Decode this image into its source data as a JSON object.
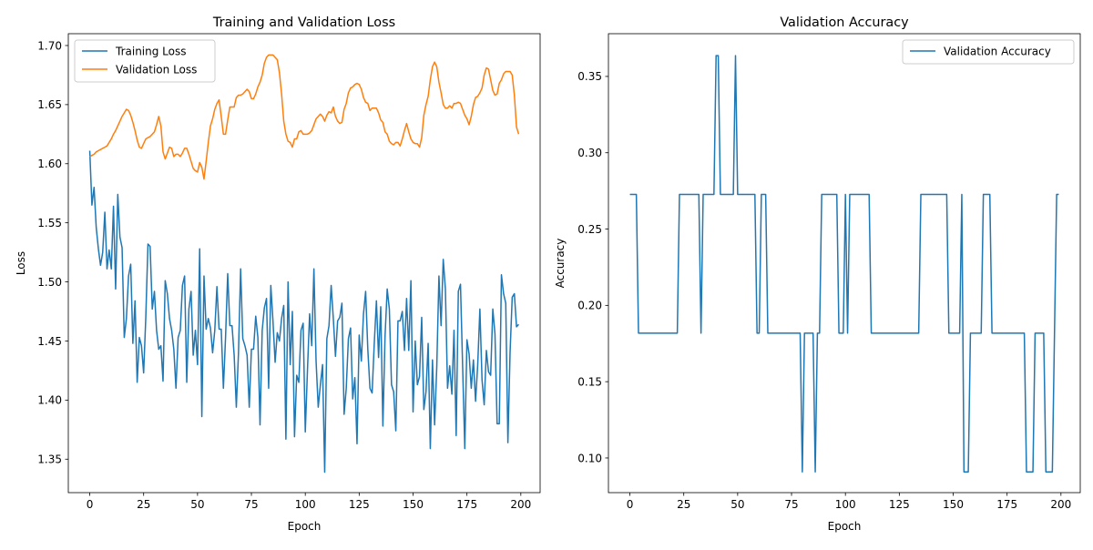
{
  "chart_data": [
    {
      "type": "line",
      "title": "Training and Validation Loss",
      "xlabel": "Epoch",
      "ylabel": "Loss",
      "xlim": [
        -9.95,
        208.95
      ],
      "ylim": [
        1.3217,
        1.71
      ],
      "xticks": [
        0,
        25,
        50,
        75,
        100,
        125,
        150,
        175,
        200
      ],
      "yticks": [
        1.35,
        1.4,
        1.45,
        1.5,
        1.55,
        1.6,
        1.65,
        1.7
      ],
      "ytick_labels": [
        "1.35",
        "1.40",
        "1.45",
        "1.50",
        "1.55",
        "1.60",
        "1.65",
        "1.70"
      ],
      "grid": false,
      "legend": "top-left",
      "series": [
        {
          "name": "Training Loss",
          "color": "#1f77b4",
          "values": [
            1.611,
            1.565,
            1.58,
            1.546,
            1.528,
            1.514,
            1.525,
            1.559,
            1.511,
            1.527,
            1.511,
            1.564,
            1.494,
            1.574,
            1.538,
            1.529,
            1.453,
            1.469,
            1.505,
            1.515,
            1.448,
            1.484,
            1.415,
            1.453,
            1.446,
            1.423,
            1.47,
            1.532,
            1.53,
            1.477,
            1.492,
            1.459,
            1.443,
            1.446,
            1.416,
            1.501,
            1.49,
            1.469,
            1.459,
            1.443,
            1.41,
            1.453,
            1.459,
            1.497,
            1.505,
            1.415,
            1.477,
            1.492,
            1.438,
            1.459,
            1.43,
            1.528,
            1.386,
            1.505,
            1.46,
            1.469,
            1.461,
            1.44,
            1.459,
            1.496,
            1.46,
            1.46,
            1.41,
            1.453,
            1.507,
            1.463,
            1.463,
            1.438,
            1.394,
            1.44,
            1.511,
            1.452,
            1.446,
            1.438,
            1.394,
            1.443,
            1.443,
            1.471,
            1.453,
            1.379,
            1.459,
            1.478,
            1.486,
            1.41,
            1.497,
            1.467,
            1.432,
            1.457,
            1.45,
            1.469,
            1.48,
            1.367,
            1.5,
            1.43,
            1.475,
            1.369,
            1.421,
            1.415,
            1.459,
            1.465,
            1.373,
            1.425,
            1.473,
            1.446,
            1.511,
            1.433,
            1.394,
            1.413,
            1.43,
            1.339,
            1.452,
            1.463,
            1.497,
            1.469,
            1.437,
            1.467,
            1.47,
            1.482,
            1.388,
            1.41,
            1.452,
            1.461,
            1.401,
            1.419,
            1.363,
            1.455,
            1.433,
            1.473,
            1.492,
            1.443,
            1.41,
            1.406,
            1.448,
            1.484,
            1.436,
            1.479,
            1.378,
            1.454,
            1.494,
            1.477,
            1.413,
            1.407,
            1.374,
            1.467,
            1.467,
            1.475,
            1.442,
            1.486,
            1.442,
            1.501,
            1.39,
            1.45,
            1.413,
            1.42,
            1.47,
            1.392,
            1.407,
            1.448,
            1.359,
            1.434,
            1.379,
            1.428,
            1.505,
            1.463,
            1.519,
            1.494,
            1.41,
            1.429,
            1.405,
            1.459,
            1.37,
            1.492,
            1.498,
            1.428,
            1.359,
            1.451,
            1.439,
            1.41,
            1.434,
            1.399,
            1.43,
            1.477,
            1.417,
            1.396,
            1.442,
            1.424,
            1.421,
            1.477,
            1.456,
            1.38,
            1.38,
            1.506,
            1.49,
            1.482,
            1.364,
            1.44,
            1.487,
            1.49,
            1.462,
            1.464
          ]
        },
        {
          "name": "Validation Loss",
          "color": "#ff7f0e",
          "values": [
            1.606,
            1.607,
            1.608,
            1.61,
            1.611,
            1.612,
            1.613,
            1.614,
            1.615,
            1.618,
            1.621,
            1.625,
            1.628,
            1.632,
            1.636,
            1.64,
            1.643,
            1.646,
            1.645,
            1.641,
            1.635,
            1.628,
            1.62,
            1.614,
            1.613,
            1.617,
            1.621,
            1.622,
            1.623,
            1.625,
            1.627,
            1.633,
            1.64,
            1.632,
            1.61,
            1.604,
            1.609,
            1.614,
            1.613,
            1.606,
            1.608,
            1.608,
            1.606,
            1.609,
            1.613,
            1.613,
            1.608,
            1.602,
            1.596,
            1.594,
            1.593,
            1.601,
            1.597,
            1.587,
            1.602,
            1.618,
            1.632,
            1.638,
            1.646,
            1.651,
            1.654,
            1.64,
            1.625,
            1.625,
            1.637,
            1.648,
            1.648,
            1.648,
            1.656,
            1.658,
            1.658,
            1.659,
            1.661,
            1.663,
            1.661,
            1.655,
            1.655,
            1.659,
            1.665,
            1.669,
            1.675,
            1.685,
            1.69,
            1.692,
            1.692,
            1.692,
            1.69,
            1.688,
            1.677,
            1.659,
            1.636,
            1.625,
            1.619,
            1.618,
            1.614,
            1.621,
            1.621,
            1.627,
            1.628,
            1.625,
            1.625,
            1.625,
            1.626,
            1.628,
            1.633,
            1.638,
            1.64,
            1.642,
            1.64,
            1.636,
            1.641,
            1.644,
            1.643,
            1.648,
            1.64,
            1.636,
            1.634,
            1.635,
            1.646,
            1.651,
            1.66,
            1.664,
            1.665,
            1.667,
            1.668,
            1.667,
            1.663,
            1.656,
            1.652,
            1.651,
            1.645,
            1.647,
            1.647,
            1.647,
            1.643,
            1.637,
            1.635,
            1.627,
            1.625,
            1.619,
            1.617,
            1.616,
            1.618,
            1.618,
            1.615,
            1.621,
            1.628,
            1.634,
            1.627,
            1.621,
            1.618,
            1.617,
            1.617,
            1.614,
            1.622,
            1.641,
            1.65,
            1.657,
            1.671,
            1.682,
            1.686,
            1.682,
            1.669,
            1.66,
            1.65,
            1.647,
            1.647,
            1.649,
            1.647,
            1.651,
            1.651,
            1.652,
            1.651,
            1.646,
            1.641,
            1.638,
            1.633,
            1.64,
            1.65,
            1.656,
            1.657,
            1.66,
            1.664,
            1.675,
            1.681,
            1.68,
            1.671,
            1.662,
            1.658,
            1.659,
            1.668,
            1.671,
            1.676,
            1.678,
            1.678,
            1.678,
            1.675,
            1.658,
            1.631,
            1.625
          ]
        }
      ]
    },
    {
      "type": "line",
      "title": "Validation Accuracy",
      "xlabel": "Epoch",
      "ylabel": "Accuracy",
      "xlim": [
        -9.95,
        208.95
      ],
      "ylim": [
        0.0773,
        0.378
      ],
      "xticks": [
        0,
        25,
        50,
        75,
        100,
        125,
        150,
        175,
        200
      ],
      "yticks": [
        0.1,
        0.15,
        0.2,
        0.25,
        0.3,
        0.35
      ],
      "ytick_labels": [
        "0.10",
        "0.15",
        "0.20",
        "0.25",
        "0.30",
        "0.35"
      ],
      "grid": false,
      "legend": "top-right",
      "series": [
        {
          "name": "Validation Accuracy",
          "color": "#1f77b4",
          "values": [
            0.2727,
            0.2727,
            0.2727,
            0.2727,
            0.1818,
            0.1818,
            0.1818,
            0.1818,
            0.1818,
            0.1818,
            0.1818,
            0.1818,
            0.1818,
            0.1818,
            0.1818,
            0.1818,
            0.1818,
            0.1818,
            0.1818,
            0.1818,
            0.1818,
            0.1818,
            0.1818,
            0.2727,
            0.2727,
            0.2727,
            0.2727,
            0.2727,
            0.2727,
            0.2727,
            0.2727,
            0.2727,
            0.2727,
            0.1818,
            0.2727,
            0.2727,
            0.2727,
            0.2727,
            0.2727,
            0.2727,
            0.3636,
            0.3636,
            0.2727,
            0.2727,
            0.2727,
            0.2727,
            0.2727,
            0.2727,
            0.2727,
            0.3636,
            0.2727,
            0.2727,
            0.2727,
            0.2727,
            0.2727,
            0.2727,
            0.2727,
            0.2727,
            0.2727,
            0.1818,
            0.1818,
            0.2727,
            0.2727,
            0.2727,
            0.1818,
            0.1818,
            0.1818,
            0.1818,
            0.1818,
            0.1818,
            0.1818,
            0.1818,
            0.1818,
            0.1818,
            0.1818,
            0.1818,
            0.1818,
            0.1818,
            0.1818,
            0.1818,
            0.0909,
            0.1818,
            0.1818,
            0.1818,
            0.1818,
            0.1818,
            0.0909,
            0.1818,
            0.1818,
            0.2727,
            0.2727,
            0.2727,
            0.2727,
            0.2727,
            0.2727,
            0.2727,
            0.2727,
            0.1818,
            0.1818,
            0.1818,
            0.2727,
            0.1818,
            0.2727,
            0.2727,
            0.2727,
            0.2727,
            0.2727,
            0.2727,
            0.2727,
            0.2727,
            0.2727,
            0.2727,
            0.1818,
            0.1818,
            0.1818,
            0.1818,
            0.1818,
            0.1818,
            0.1818,
            0.1818,
            0.1818,
            0.1818,
            0.1818,
            0.1818,
            0.1818,
            0.1818,
            0.1818,
            0.1818,
            0.1818,
            0.1818,
            0.1818,
            0.1818,
            0.1818,
            0.1818,
            0.1818,
            0.2727,
            0.2727,
            0.2727,
            0.2727,
            0.2727,
            0.2727,
            0.2727,
            0.2727,
            0.2727,
            0.2727,
            0.2727,
            0.2727,
            0.2727,
            0.1818,
            0.1818,
            0.1818,
            0.1818,
            0.1818,
            0.1818,
            0.2727,
            0.0909,
            0.0909,
            0.0909,
            0.1818,
            0.1818,
            0.1818,
            0.1818,
            0.1818,
            0.1818,
            0.2727,
            0.2727,
            0.2727,
            0.2727,
            0.1818,
            0.1818,
            0.1818,
            0.1818,
            0.1818,
            0.1818,
            0.1818,
            0.1818,
            0.1818,
            0.1818,
            0.1818,
            0.1818,
            0.1818,
            0.1818,
            0.1818,
            0.1818,
            0.0909,
            0.0909,
            0.0909,
            0.0909,
            0.1818,
            0.1818,
            0.1818,
            0.1818,
            0.1818,
            0.0909,
            0.0909,
            0.0909,
            0.0909,
            0.1818,
            0.2727,
            0.2727
          ]
        }
      ]
    }
  ]
}
